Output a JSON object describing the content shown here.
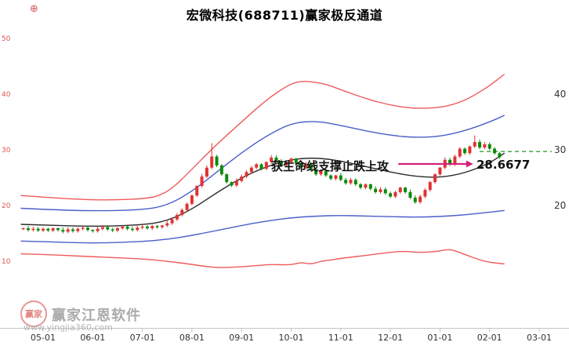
{
  "title": "宏微科技(688711)赢家极反通道",
  "corner_mark": "⊕",
  "annotation": {
    "support_text": "获生命线支撑止跌上攻",
    "price_label": "28.6677"
  },
  "watermark": {
    "logo_chars": "赢家",
    "brand": "赢家江恩软件",
    "url": "www.yingjia360.com"
  },
  "colors": {
    "up": "#e03232",
    "down": "#0b8a0b",
    "channel_red": "#ef5b5b",
    "channel_blue": "#4a5fc9",
    "life_line": "#2b2b2b",
    "dash_green": "#1f9a1f",
    "arrow": "#d4237a",
    "axis_text": "#333333",
    "axis_line": "#c4c4c4",
    "left_tick": "#dd5555"
  },
  "chart_data": {
    "type": "candlestick",
    "title": "宏微科技(688711)赢家极反通道",
    "legend": "none",
    "grid": "off",
    "x_axis": {
      "unit": "month-start",
      "tick_labels": [
        "05-01",
        "06-01",
        "07-01",
        "08-01",
        "09-01",
        "10-01",
        "11-01",
        "12-01",
        "01-01",
        "02-01",
        "03-01"
      ],
      "tick_positions": [
        0,
        1,
        2,
        3,
        4,
        5,
        6,
        7,
        8,
        9,
        10
      ]
    },
    "y_axis": {
      "ylim": [
        -2,
        51
      ],
      "right_ticks": [
        40,
        30,
        20
      ],
      "left_ticks": [
        50,
        40,
        30,
        20,
        10
      ]
    },
    "candles": {
      "m_start": -0.4,
      "m_step": 0.1,
      "last_close": 28.6677,
      "closes": [
        15.9,
        15.6,
        15.8,
        15.5,
        15.8,
        15.5,
        15.9,
        15.6,
        15.3,
        15.7,
        15.4,
        15.8,
        16.0,
        15.6,
        15.4,
        15.8,
        16.1,
        15.7,
        15.5,
        15.9,
        16.2,
        15.8,
        15.6,
        16.0,
        16.2,
        15.9,
        16.3,
        16.1,
        16.4,
        16.8,
        17.5,
        18.3,
        19.2,
        20.3,
        21.8,
        23.5,
        25.2,
        26.8,
        28.8,
        27.2,
        25.6,
        24.2,
        23.6,
        24.4,
        25.2,
        26.0,
        26.8,
        27.4,
        26.6,
        27.8,
        28.6,
        28.0,
        27.2,
        27.8,
        28.4,
        27.6,
        26.8,
        27.4,
        26.4,
        25.6,
        26.2,
        25.4,
        24.8,
        25.4,
        24.6,
        24.0,
        24.6,
        23.8,
        23.2,
        23.8,
        23.0,
        22.4,
        22.9,
        22.2,
        21.6,
        22.4,
        23.2,
        22.4,
        21.4,
        20.6,
        21.6,
        22.8,
        24.2,
        25.6,
        26.8,
        28.2,
        27.4,
        28.8,
        30.2,
        29.4,
        30.6,
        31.4,
        30.4,
        31.0,
        30.2,
        29.4,
        28.6677
      ],
      "special_highs": {
        "38": 31.2,
        "91": 32.6
      }
    },
    "channel_lines": [
      {
        "name": "upper-outer-red",
        "color": "#ef5b5b",
        "x": [
          -0.45,
          0,
          0.5,
          1,
          1.5,
          2,
          2.3,
          2.6,
          3,
          3.5,
          4,
          4.5,
          5,
          5.3,
          5.7,
          6,
          6.5,
          7,
          7.5,
          8,
          8.3,
          8.6,
          9,
          9.3
        ],
        "v": [
          21.8,
          21.5,
          21.2,
          21.0,
          21.0,
          21.2,
          21.6,
          23.0,
          26.5,
          31.0,
          35.0,
          39.0,
          42.0,
          42.4,
          41.8,
          40.8,
          39.2,
          38.0,
          37.4,
          37.6,
          38.2,
          39.3,
          41.5,
          43.6
        ]
      },
      {
        "name": "upper-inner-blue",
        "color": "#4a5fc9",
        "x": [
          -0.45,
          0,
          1,
          2,
          2.5,
          3,
          3.5,
          4,
          4.5,
          5,
          5.5,
          6,
          6.5,
          7,
          7.5,
          8,
          8.5,
          9,
          9.3
        ],
        "v": [
          19.5,
          19.3,
          19.0,
          19.2,
          20.0,
          22.5,
          26.0,
          29.5,
          32.5,
          34.8,
          35.2,
          34.4,
          33.4,
          32.6,
          32.2,
          32.4,
          33.4,
          35.0,
          36.2
        ]
      },
      {
        "name": "life-line-black",
        "color": "#2b2b2b",
        "x": [
          -0.45,
          0,
          1,
          2,
          2.5,
          3,
          3.5,
          4,
          4.5,
          5,
          5.5,
          6,
          6.5,
          7,
          7.5,
          8,
          8.5,
          9,
          9.3
        ],
        "v": [
          16.6,
          16.5,
          16.2,
          16.5,
          17.2,
          19.3,
          22.3,
          25.0,
          27.0,
          28.3,
          28.6,
          28.0,
          27.0,
          26.0,
          25.2,
          25.0,
          25.8,
          27.6,
          29.4
        ]
      },
      {
        "name": "lower-inner-blue",
        "color": "#4a5fc9",
        "x": [
          -0.45,
          0,
          1,
          2,
          2.5,
          3,
          3.5,
          4,
          4.5,
          5,
          5.5,
          6,
          6.5,
          7,
          7.5,
          8,
          8.5,
          9,
          9.3
        ],
        "v": [
          13.6,
          13.5,
          13.2,
          13.5,
          13.9,
          14.6,
          15.5,
          16.4,
          17.2,
          17.8,
          18.1,
          18.2,
          18.1,
          18.0,
          17.9,
          18.0,
          18.3,
          18.8,
          19.1
        ]
      },
      {
        "name": "lower-outer-red",
        "color": "#ef5b5b",
        "x": [
          -0.45,
          0,
          0.5,
          1,
          1.5,
          2,
          2.5,
          3,
          3.3,
          3.6,
          4,
          4.3,
          4.6,
          5,
          5.2,
          5.4,
          5.6,
          5.8,
          6,
          6.5,
          7,
          7.3,
          7.6,
          8,
          8.2,
          8.5,
          8.8,
          9,
          9.3
        ],
        "v": [
          11.3,
          11.2,
          11.0,
          10.8,
          10.6,
          10.4,
          10.0,
          9.4,
          9.0,
          8.8,
          9.0,
          9.2,
          9.4,
          9.3,
          9.8,
          9.4,
          10.0,
          10.2,
          10.5,
          11.0,
          11.6,
          11.8,
          11.5,
          11.8,
          12.2,
          11.2,
          10.2,
          9.8,
          9.5
        ]
      }
    ],
    "price_dash_line": {
      "value": 29.7,
      "from_m": 8.8,
      "color": "#1f9a1f"
    },
    "annotation_arrow": {
      "from_m": 7.16,
      "to_m": 8.67,
      "value": 27.46,
      "color": "#d4237a"
    }
  }
}
